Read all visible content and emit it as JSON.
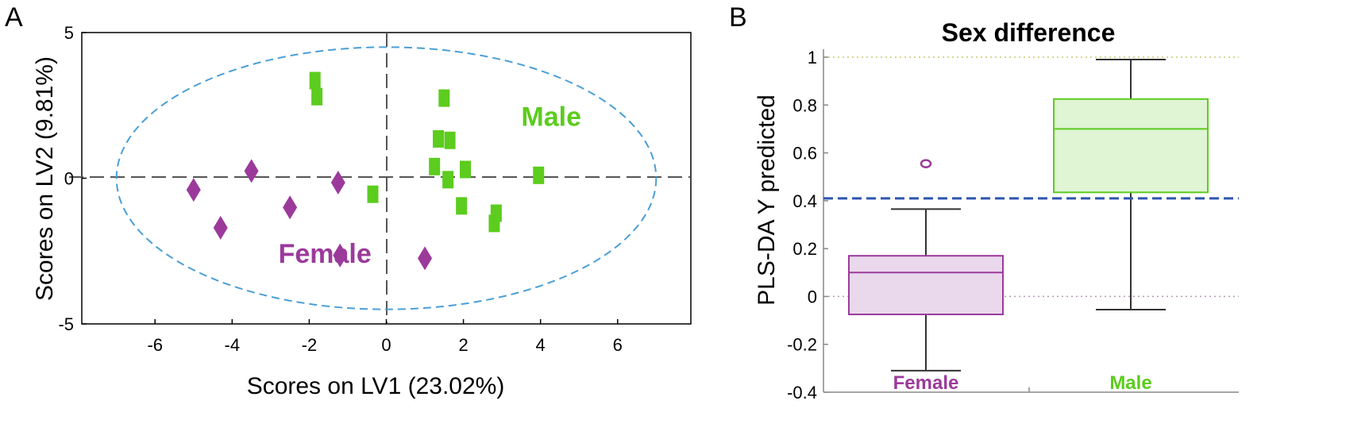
{
  "panel_a": "A",
  "panel_b": "B",
  "colors": {
    "female": "#9b3a9b",
    "male": "#5ccc1e",
    "ellipse": "#4a9fd6",
    "threshold": "#2e55b0",
    "female_box_fill": "#ead8ec",
    "male_box_fill": "#dff5d3"
  },
  "chart_data": [
    {
      "type": "scatter",
      "title": "",
      "xlabel": "Scores on LV1 (23.02%)",
      "ylabel": "Scores on LV2 (9.81%)",
      "xlim": [
        -7.9,
        7.9
      ],
      "ylim": [
        -5,
        5
      ],
      "x_ticks": [
        -6,
        -4,
        -2,
        0,
        2,
        4,
        6
      ],
      "x_tick_labels": [
        "-6",
        "-4",
        "-2",
        "0",
        "2",
        "4",
        "6"
      ],
      "y_ticks": [
        5,
        0,
        -5
      ],
      "y_tick_labels": [
        "5",
        "0",
        "-5"
      ],
      "confidence_ellipse": {
        "cx": 0,
        "cy": 0,
        "rx": 7.0,
        "ry": 4.5
      },
      "annotations": [
        {
          "text": "Male",
          "x": 3.5,
          "y": 1.8,
          "group": "male"
        },
        {
          "text": "Female",
          "x": -2.8,
          "y": -2.9,
          "group": "female"
        }
      ],
      "series": [
        {
          "name": "Female",
          "marker": "diamond",
          "points": [
            {
              "x": -5.0,
              "y": -0.4
            },
            {
              "x": -4.3,
              "y": -1.7
            },
            {
              "x": -3.5,
              "y": 0.25
            },
            {
              "x": -2.5,
              "y": -1.0
            },
            {
              "x": -1.25,
              "y": -0.15
            },
            {
              "x": -1.2,
              "y": -2.65
            },
            {
              "x": 1.0,
              "y": -2.75
            }
          ]
        },
        {
          "name": "Male",
          "marker": "square",
          "points": [
            {
              "x": -1.85,
              "y": 3.35
            },
            {
              "x": -1.8,
              "y": 2.8
            },
            {
              "x": -0.35,
              "y": -0.55
            },
            {
              "x": 1.5,
              "y": 2.75
            },
            {
              "x": 1.35,
              "y": 1.35
            },
            {
              "x": 1.65,
              "y": 1.3
            },
            {
              "x": 1.25,
              "y": 0.4
            },
            {
              "x": 1.6,
              "y": -0.05
            },
            {
              "x": 2.05,
              "y": 0.3
            },
            {
              "x": 1.95,
              "y": -0.95
            },
            {
              "x": 2.85,
              "y": -1.2
            },
            {
              "x": 2.8,
              "y": -1.55
            },
            {
              "x": 3.95,
              "y": 0.1
            }
          ]
        }
      ]
    },
    {
      "type": "box",
      "title": "Sex difference",
      "xlabel": "",
      "ylabel": "PLS-DA Y predicted",
      "ylim": [
        -0.4,
        1.0
      ],
      "y_ticks": [
        1,
        0.8,
        0.6,
        0.4,
        0.2,
        0,
        -0.2,
        -0.4
      ],
      "y_tick_labels": [
        "1",
        "0.8",
        "0.6",
        "0.4",
        "0.2",
        "0",
        "-0.2",
        "-0.4"
      ],
      "threshold": 0.41,
      "reference_lines": [
        1,
        0
      ],
      "categories": [
        "Female",
        "Male"
      ],
      "boxes": [
        {
          "name": "Female",
          "min": -0.31,
          "q1": -0.075,
          "median": 0.1,
          "q3": 0.17,
          "max": 0.365,
          "outliers": [
            0.555
          ]
        },
        {
          "name": "Male",
          "min": -0.055,
          "q1": 0.435,
          "median": 0.7,
          "q3": 0.825,
          "max": 0.99,
          "outliers": []
        }
      ]
    }
  ]
}
